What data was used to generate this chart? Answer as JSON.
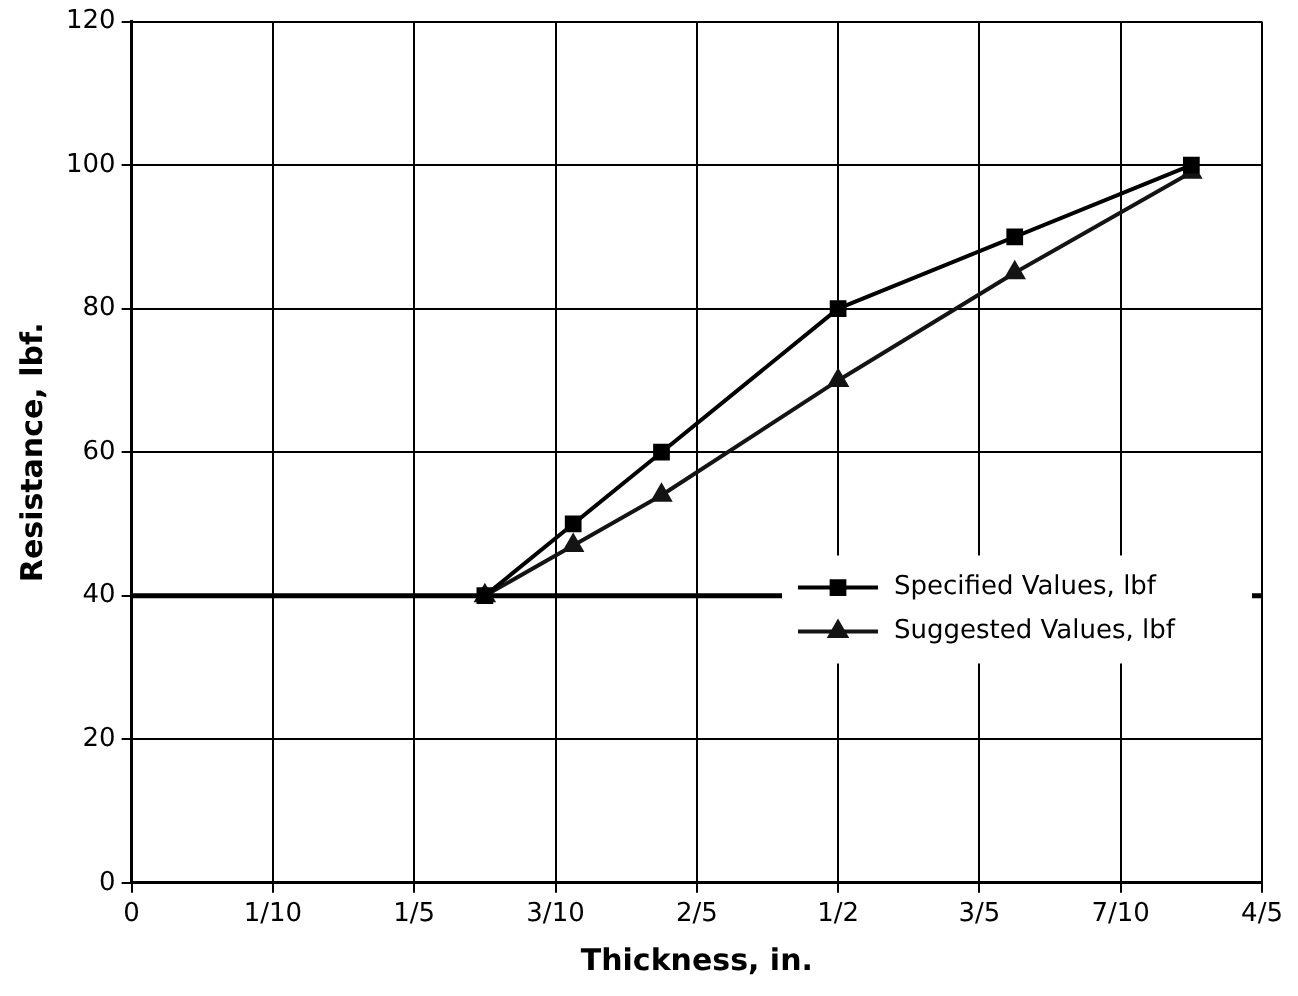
{
  "chart_data": {
    "type": "line",
    "xlabel": "Thickness, in.",
    "ylabel": "Resistance, lbf.",
    "xlim": [
      0,
      0.8
    ],
    "xticks": [
      0,
      {
        "value": 0.1,
        "label": "1/10"
      },
      {
        "value": 0.2,
        "label": "1/5"
      },
      {
        "value": 0.3,
        "label": "3/10"
      },
      {
        "value": 0.4,
        "label": "2/5"
      },
      {
        "value": 0.5,
        "label": "1/2"
      },
      {
        "value": 0.6,
        "label": "3/5"
      },
      {
        "value": 0.7,
        "label": "7/10"
      },
      {
        "value": 0.8,
        "label": "4/5"
      }
    ],
    "ylim": [
      0,
      120
    ],
    "yticks": [
      0,
      20,
      40,
      60,
      80,
      100,
      120
    ],
    "grid": true,
    "legend": "right",
    "ref_lines": [
      {
        "axis": "y",
        "value": 40,
        "color": "#000000"
      }
    ],
    "series": [
      {
        "name": "Specified Values, lbf",
        "color": "#000000",
        "marker": "square",
        "x": [
          0.25,
          0.3125,
          0.375,
          0.5,
          0.625,
          0.75
        ],
        "values": [
          40,
          50,
          60,
          80,
          90,
          100
        ]
      },
      {
        "name": "Suggested Values, lbf",
        "color": "#141414",
        "marker": "triangle",
        "x": [
          0.25,
          0.3125,
          0.375,
          0.5,
          0.625,
          0.75
        ],
        "values": [
          40,
          47,
          54,
          70,
          85,
          99
        ]
      }
    ]
  }
}
